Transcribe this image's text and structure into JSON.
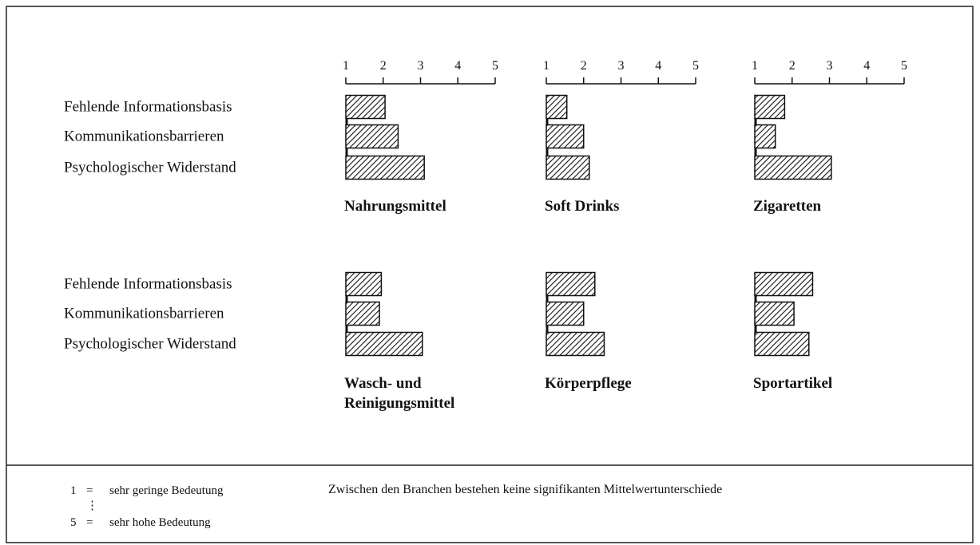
{
  "chart_data": [
    {
      "type": "bar",
      "title": "Nahrungsmittel",
      "categories": [
        "Fehlende Informationsbasis",
        "Kommunikationsbarrieren",
        "Psychologischer Widerstand"
      ],
      "values": [
        2.05,
        2.4,
        3.1
      ],
      "xlim": [
        1,
        5
      ],
      "xticks": [
        1,
        2,
        3,
        4,
        5
      ]
    },
    {
      "type": "bar",
      "title": "Soft Drinks",
      "values": [
        1.55,
        2.0,
        2.15
      ],
      "xlim": [
        1,
        5
      ],
      "xticks": [
        1,
        2,
        3,
        4,
        5
      ]
    },
    {
      "type": "bar",
      "title": "Zigaretten",
      "values": [
        1.8,
        1.55,
        3.05
      ],
      "xlim": [
        1,
        5
      ],
      "xticks": [
        1,
        2,
        3,
        4,
        5
      ]
    },
    {
      "type": "bar",
      "title": "Wasch- und\nReinigungsmittel",
      "categories": [
        "Fehlende Informationsbasis",
        "Kommunikationsbarrieren",
        "Psychologischer Widerstand"
      ],
      "values": [
        1.95,
        1.9,
        3.05
      ],
      "xlim": [
        1,
        5
      ]
    },
    {
      "type": "bar",
      "title": "Körperpflege",
      "values": [
        2.3,
        2.0,
        2.55
      ],
      "xlim": [
        1,
        5
      ]
    },
    {
      "type": "bar",
      "title": "Sportartikel",
      "values": [
        2.55,
        2.05,
        2.45
      ],
      "xlim": [
        1,
        5
      ]
    }
  ],
  "footer": {
    "scale": [
      {
        "number": "1",
        "sign": "=",
        "text": "sehr geringe Bedeutung"
      },
      {
        "number": "5",
        "sign": "=",
        "text": "sehr hohe Bedeutung"
      }
    ],
    "ellipsis": "⋮",
    "note": "Zwischen den Branchen bestehen keine signifikanten Mittelwertunterschiede"
  }
}
